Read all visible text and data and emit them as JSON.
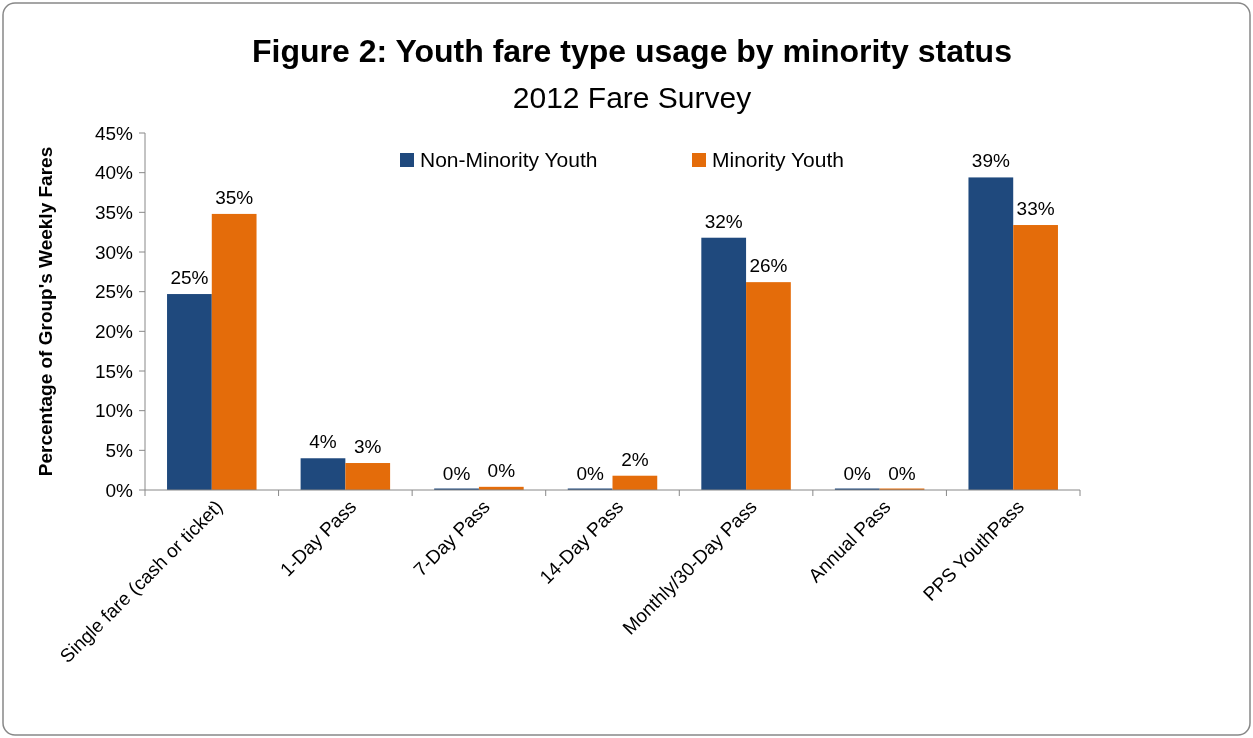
{
  "chart_data": {
    "type": "bar",
    "title": "Figure 2: Youth fare type usage by minority status",
    "subtitle": "2012 Fare Survey",
    "ylabel": "Percentage of Group's Weekly Fares",
    "categories": [
      "Single fare (cash or ticket)",
      "1-Day Pass",
      "7-Day Pass",
      "14-Day Pass",
      "Monthly/30-Day Pass",
      "Annual Pass",
      "PPS YouthPass"
    ],
    "series": [
      {
        "name": "Non-Minority Youth",
        "color": "#1f497d",
        "values": [
          24.7,
          4.0,
          0,
          0,
          31.8,
          0,
          39.4
        ],
        "value_labels": [
          "25%",
          "4%",
          "0%",
          "0%",
          "32%",
          "0%",
          "39%"
        ]
      },
      {
        "name": "Minority Youth",
        "color": "#e46c0a",
        "values": [
          34.8,
          3.4,
          0.4,
          1.8,
          26.2,
          0,
          33.4
        ],
        "value_labels": [
          "35%",
          "3%",
          "0%",
          "2%",
          "26%",
          "0%",
          "33%"
        ]
      }
    ],
    "ylim": [
      0,
      45
    ],
    "yticks": [
      {
        "value": 0,
        "label": "0%"
      },
      {
        "value": 5,
        "label": "5%"
      },
      {
        "value": 10,
        "label": "10%"
      },
      {
        "value": 15,
        "label": "15%"
      },
      {
        "value": 20,
        "label": "20%"
      },
      {
        "value": 25,
        "label": "25%"
      },
      {
        "value": 30,
        "label": "30%"
      },
      {
        "value": 35,
        "label": "35%"
      },
      {
        "value": 40,
        "label": "40%"
      },
      {
        "value": 45,
        "label": "45%"
      }
    ],
    "grid": false,
    "legend": "top"
  }
}
